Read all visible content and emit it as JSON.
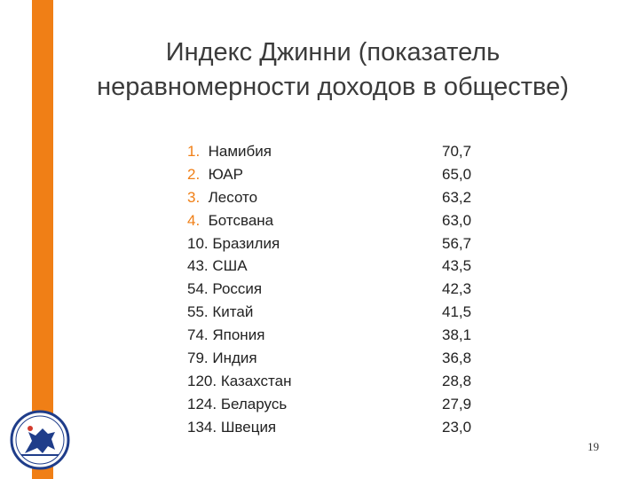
{
  "title": {
    "line1": "Индекс Джинни (показатель",
    "line2": "неравномерности доходов в обществе)"
  },
  "rows": [
    {
      "rank": "1.",
      "country": "Намибия",
      "value": "70,7"
    },
    {
      "rank": "2.",
      "country": "ЮАР",
      "value": "65,0"
    },
    {
      "rank": "3.",
      "country": "Лесото",
      "value": "63,2"
    },
    {
      "rank": "4.",
      "country": "Ботсвана",
      "value": "63,0"
    },
    {
      "rank": "10.",
      "country": "Бразилия",
      "value": "56,7"
    },
    {
      "rank": "43.",
      "country": "США",
      "value": "43,5"
    },
    {
      "rank": "54.",
      "country": "Россия",
      "value": "42,3"
    },
    {
      "rank": "55.",
      "country": "Китай",
      "value": "41,5"
    },
    {
      "rank": "74.",
      "country": "Япония",
      "value": "38,1"
    },
    {
      "rank": "79.",
      "country": "Индия",
      "value": "36,8"
    },
    {
      "rank": "120.",
      "country": "Казахстан",
      "value": "28,8"
    },
    {
      "rank": "124.",
      "country": "Беларусь",
      "value": "27,9"
    },
    {
      "rank": "134.",
      "country": "Швеция",
      "value": "23,0"
    }
  ],
  "page_number": "19",
  "colors": {
    "accent": "#f07f16",
    "logo_blue": "#1f3d8a"
  },
  "icons": {
    "logo": "university-emblem-icon"
  }
}
